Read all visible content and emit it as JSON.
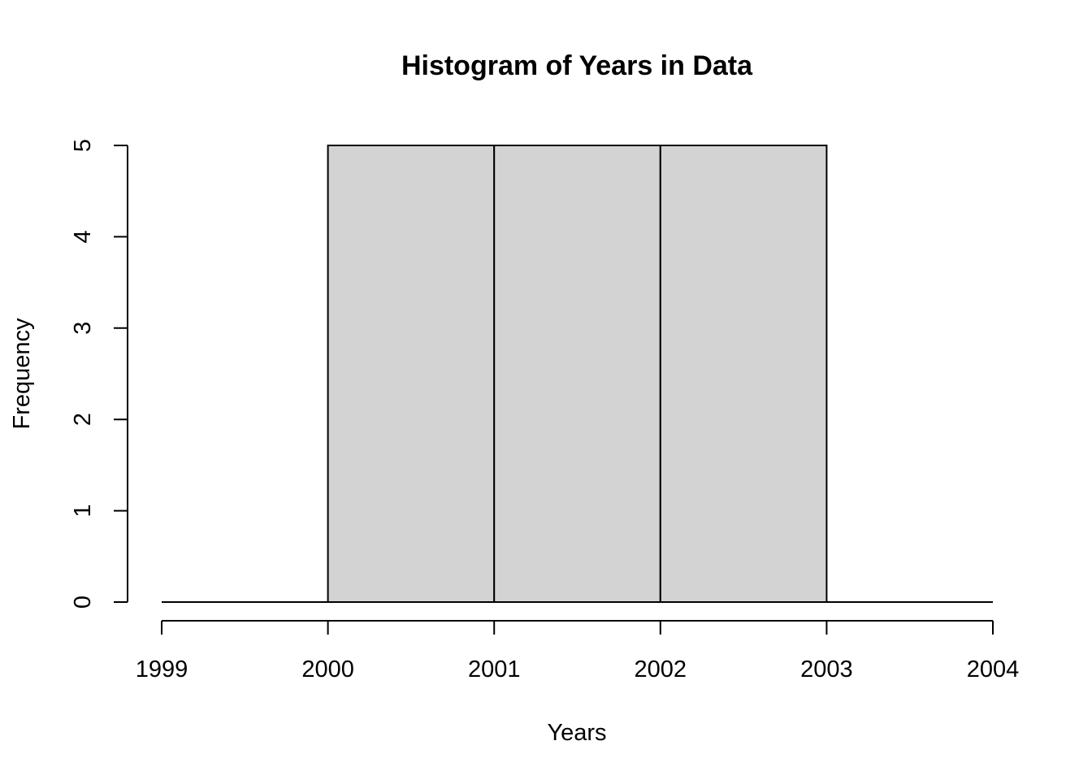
{
  "chart_data": {
    "type": "bar",
    "title": "Histogram of Years in Data",
    "xlabel": "Years",
    "ylabel": "Frequency",
    "bins": [
      {
        "start": 1999,
        "end": 2000,
        "count": 0
      },
      {
        "start": 2000,
        "end": 2001,
        "count": 5
      },
      {
        "start": 2001,
        "end": 2002,
        "count": 5
      },
      {
        "start": 2002,
        "end": 2003,
        "count": 5
      },
      {
        "start": 2003,
        "end": 2004,
        "count": 0
      }
    ],
    "xlim": [
      1999,
      2004
    ],
    "ylim": [
      0,
      5
    ],
    "x_ticks": [
      "1999",
      "2000",
      "2001",
      "2002",
      "2003",
      "2004"
    ],
    "y_ticks": [
      "0",
      "1",
      "2",
      "3",
      "4",
      "5"
    ],
    "grid": false,
    "legend": "none",
    "colors": {
      "bar_fill": "#d3d3d3",
      "bar_stroke": "#000000",
      "background": "#ffffff"
    }
  }
}
